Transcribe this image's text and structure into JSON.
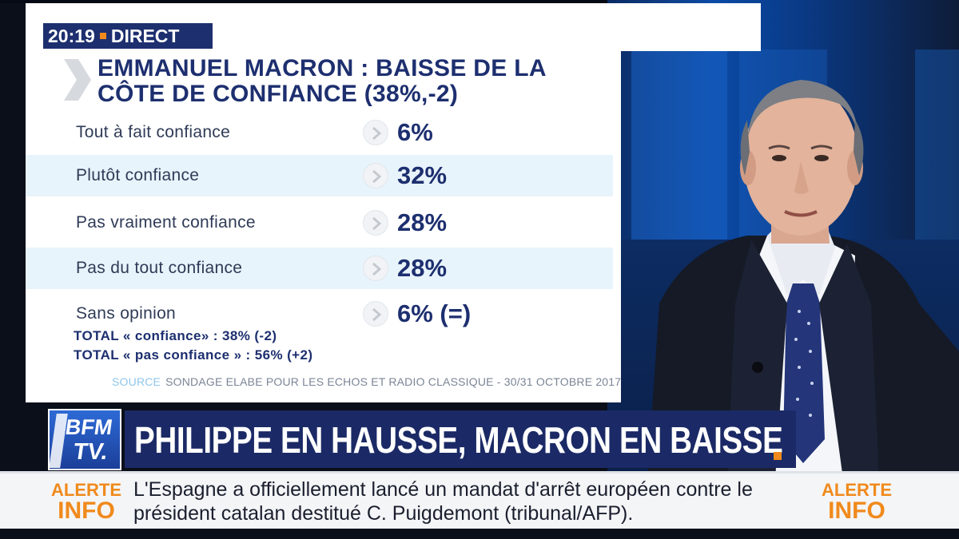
{
  "clock": {
    "time": "20:19",
    "status": "DIRECT"
  },
  "panel": {
    "title_line1": "EMMANUEL MACRON : BAISSE DE LA",
    "title_line2": "CÔTE DE CONFIANCE (38%,-2)",
    "rows": [
      {
        "label": "Tout à fait confiance",
        "value": "6%"
      },
      {
        "label": "Plutôt confiance",
        "value": "32%"
      },
      {
        "label": "Pas vraiment confiance",
        "value": "28%"
      },
      {
        "label": "Pas du tout confiance",
        "value": "28%"
      },
      {
        "label": "Sans opinion",
        "value": "6% (=)"
      }
    ],
    "total_confiance": "TOTAL « confiance» : 38% (-2)",
    "total_pas_confiance": "TOTAL « pas confiance » : 56% (+2)",
    "source_label": "SOURCE",
    "source_text": "SONDAGE ELABE POUR LES ECHOS ET RADIO CLASSIQUE - 30/31 OCTOBRE 2017"
  },
  "logo": {
    "line1": "BFM",
    "line2": "TV."
  },
  "headline": "PHILIPPE EN HAUSSE, MACRON EN BAISSE",
  "ticker": {
    "alert_word1": "ALERTE",
    "alert_word2": "INFO",
    "line1": "L'Espagne a officiellement lancé un mandat d'arrêt européen contre le",
    "line2": "président catalan destitué C. Puigdemont (tribunal/AFP)."
  },
  "colors": {
    "navy": "#1d2f6f",
    "accent_orange": "#f08a1c",
    "row_shade": "#e8f4fb",
    "source_label": "#8fc6ec"
  }
}
